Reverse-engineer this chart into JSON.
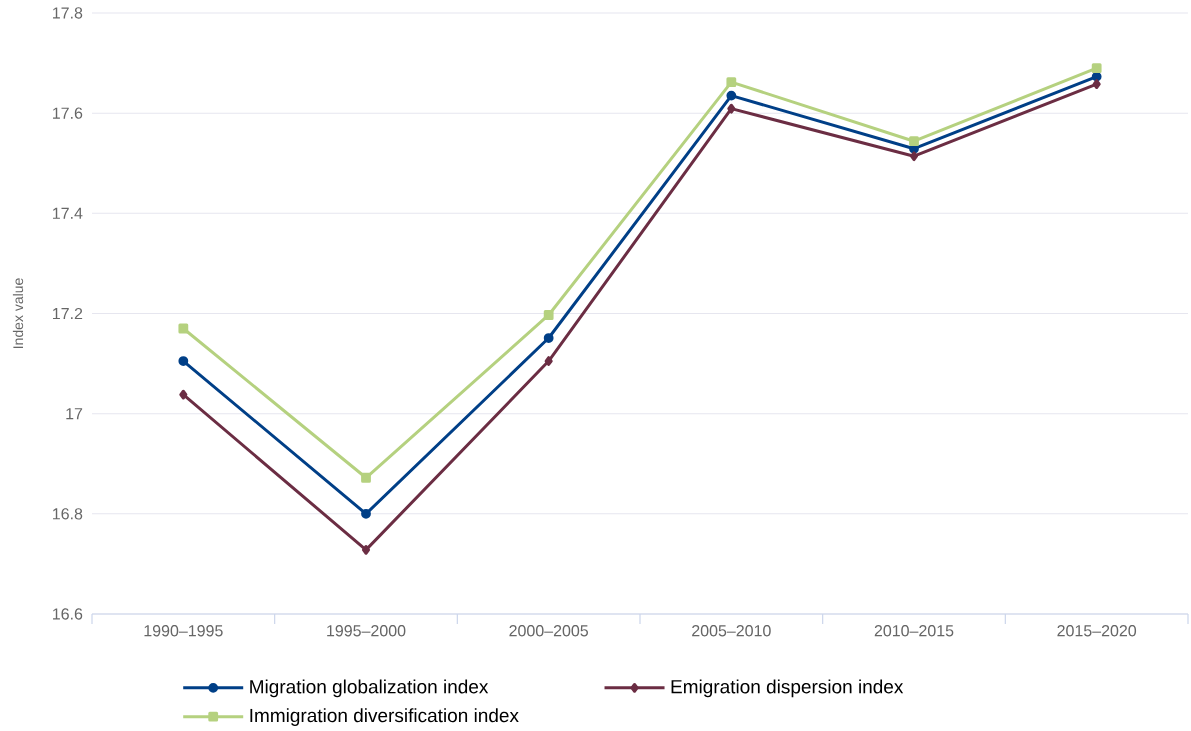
{
  "chart_data": {
    "type": "line",
    "categories": [
      "1990–1995",
      "1995–2000",
      "2000–2005",
      "2005–2010",
      "2010–2015",
      "2015–2020"
    ],
    "ylabel": "Index value",
    "ylim": [
      16.6,
      17.8
    ],
    "yticks": [
      16.6,
      16.8,
      17,
      17.2,
      17.4,
      17.6,
      17.8
    ],
    "grid": "y",
    "legend": "bottom",
    "line_style": "solid",
    "series": [
      {
        "name": "Migration globalization index",
        "color": "#003f87",
        "marker": "circle",
        "values": [
          17.105,
          16.8,
          17.151,
          17.635,
          17.529,
          17.673
        ]
      },
      {
        "name": "Emigration dispersion index",
        "color": "#6b2d43",
        "marker": "diamond",
        "values": [
          17.038,
          16.728,
          17.105,
          17.609,
          17.514,
          17.658
        ]
      },
      {
        "name": "Immigration diversification index",
        "color": "#b5d17f",
        "marker": "square",
        "values": [
          17.17,
          16.872,
          17.197,
          17.662,
          17.544,
          17.69
        ]
      }
    ]
  }
}
